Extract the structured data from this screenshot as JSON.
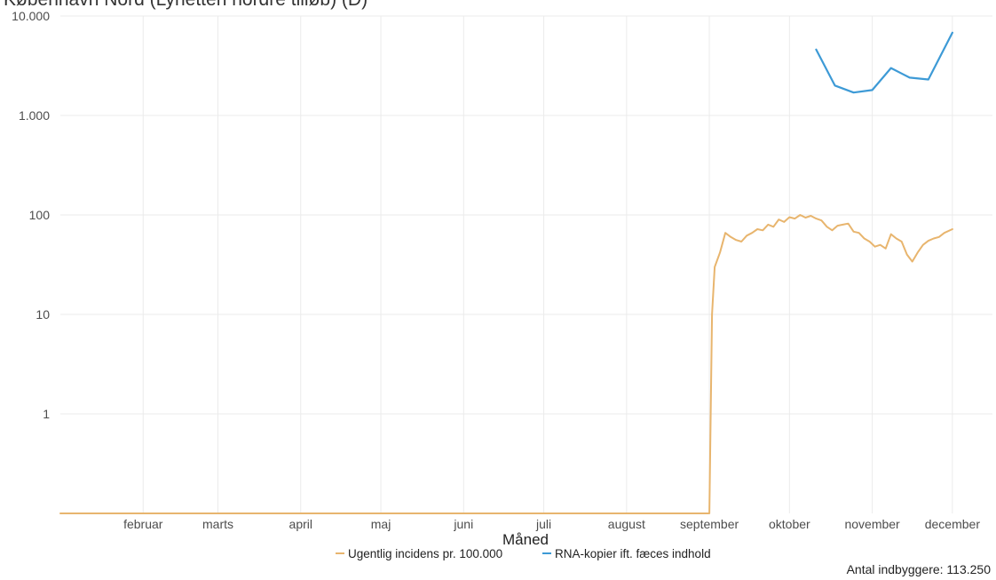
{
  "chart_data": {
    "type": "line",
    "title": "København Nord (Lynetten nordre tilløb) (D)",
    "xlabel": "Måned",
    "ylabel": "",
    "yscale": "log",
    "ylim": [
      0.1,
      10000
    ],
    "xlim": [
      "2021-01-01",
      "2021-12-16"
    ],
    "grid": true,
    "legend_position": "bottom",
    "y_ticks": [
      {
        "value": 1,
        "label": "1"
      },
      {
        "value": 10,
        "label": "10"
      },
      {
        "value": 100,
        "label": "100"
      },
      {
        "value": 1000,
        "label": "1.000"
      },
      {
        "value": 10000,
        "label": "10.000"
      }
    ],
    "x_ticks": [
      {
        "date": "2021-02-01",
        "label": "februar"
      },
      {
        "date": "2021-03-01",
        "label": "marts"
      },
      {
        "date": "2021-04-01",
        "label": "april"
      },
      {
        "date": "2021-05-01",
        "label": "maj"
      },
      {
        "date": "2021-06-01",
        "label": "juni"
      },
      {
        "date": "2021-07-01",
        "label": "juli"
      },
      {
        "date": "2021-08-01",
        "label": "august"
      },
      {
        "date": "2021-09-01",
        "label": "september"
      },
      {
        "date": "2021-10-01",
        "label": "oktober"
      },
      {
        "date": "2021-11-01",
        "label": "november"
      },
      {
        "date": "2021-12-01",
        "label": "december"
      }
    ],
    "series": [
      {
        "name": "Ugentlig incidens pr. 100.000",
        "color": "#e8b56e",
        "points": [
          [
            "2021-01-01",
            0.1
          ],
          [
            "2021-09-01",
            0.1
          ],
          [
            "2021-09-02",
            10
          ],
          [
            "2021-09-03",
            30
          ],
          [
            "2021-09-05",
            42
          ],
          [
            "2021-09-07",
            66
          ],
          [
            "2021-09-09",
            60
          ],
          [
            "2021-09-11",
            56
          ],
          [
            "2021-09-13",
            54
          ],
          [
            "2021-09-15",
            62
          ],
          [
            "2021-09-17",
            66
          ],
          [
            "2021-09-19",
            72
          ],
          [
            "2021-09-21",
            70
          ],
          [
            "2021-09-23",
            80
          ],
          [
            "2021-09-25",
            76
          ],
          [
            "2021-09-27",
            90
          ],
          [
            "2021-09-29",
            85
          ],
          [
            "2021-10-01",
            95
          ],
          [
            "2021-10-03",
            92
          ],
          [
            "2021-10-05",
            100
          ],
          [
            "2021-10-07",
            94
          ],
          [
            "2021-10-09",
            98
          ],
          [
            "2021-10-11",
            92
          ],
          [
            "2021-10-13",
            88
          ],
          [
            "2021-10-15",
            76
          ],
          [
            "2021-10-17",
            70
          ],
          [
            "2021-10-19",
            78
          ],
          [
            "2021-10-21",
            80
          ],
          [
            "2021-10-23",
            82
          ],
          [
            "2021-10-25",
            68
          ],
          [
            "2021-10-27",
            66
          ],
          [
            "2021-10-29",
            58
          ],
          [
            "2021-10-31",
            54
          ],
          [
            "2021-11-02",
            48
          ],
          [
            "2021-11-04",
            50
          ],
          [
            "2021-11-06",
            46
          ],
          [
            "2021-11-08",
            64
          ],
          [
            "2021-11-10",
            58
          ],
          [
            "2021-11-12",
            54
          ],
          [
            "2021-11-14",
            40
          ],
          [
            "2021-11-16",
            34
          ],
          [
            "2021-11-18",
            42
          ],
          [
            "2021-11-20",
            50
          ],
          [
            "2021-11-22",
            55
          ],
          [
            "2021-11-24",
            58
          ],
          [
            "2021-11-26",
            60
          ],
          [
            "2021-11-28",
            66
          ],
          [
            "2021-12-01",
            72
          ]
        ]
      },
      {
        "name": "RNA-kopier ift. fæces indhold",
        "color": "#3d9ad6",
        "points": [
          [
            "2021-10-11",
            4600
          ],
          [
            "2021-10-18",
            2000
          ],
          [
            "2021-10-25",
            1700
          ],
          [
            "2021-11-01",
            1800
          ],
          [
            "2021-11-08",
            3000
          ],
          [
            "2021-11-15",
            2400
          ],
          [
            "2021-11-22",
            2300
          ],
          [
            "2021-12-01",
            6800
          ]
        ]
      }
    ],
    "caption": "Antal indbyggere: 113.250"
  }
}
